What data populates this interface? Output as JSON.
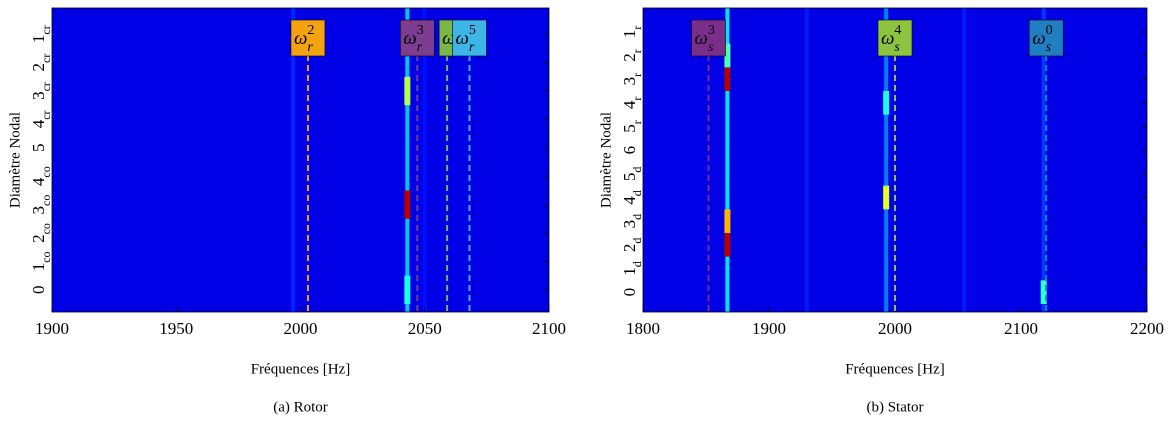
{
  "chart_data": [
    {
      "type": "heatmap",
      "colormap": "jet",
      "caption": "(a) Rotor",
      "xlabel": "Fréquences [Hz]",
      "ylabel": "Diamètre Nodal",
      "xlim": [
        1900,
        2100
      ],
      "xticks": [
        1900,
        1950,
        2000,
        2050,
        2100
      ],
      "categories": [
        [
          "0"
        ],
        [
          "1",
          "co"
        ],
        [
          "2",
          "co"
        ],
        [
          "3",
          "co"
        ],
        [
          "4",
          "co"
        ],
        [
          "5"
        ],
        [
          "4",
          "cr"
        ],
        [
          "3",
          "cr"
        ],
        [
          "2",
          "cr"
        ],
        [
          "1",
          "cr"
        ]
      ],
      "background": 0.1,
      "columns": [
        {
          "x": 2043,
          "intensity": 0.32
        },
        {
          "x": 1997,
          "intensity": 0.16
        },
        {
          "x": 2050,
          "intensity": 0.14
        }
      ],
      "peaks": [
        {
          "x": 2043,
          "y": 3,
          "intensity": 0.95
        },
        {
          "x": 2043,
          "y": 7,
          "intensity": 0.55
        },
        {
          "x": 2043,
          "y": 0,
          "intensity": 0.4
        }
      ],
      "markers": [
        {
          "x": 2003,
          "color": "#f2a30f",
          "symbol": "ω",
          "sub": "r",
          "sup": "2"
        },
        {
          "x": 2047,
          "color": "#7d3c8f",
          "symbol": "ω",
          "sub": "r",
          "sup": "3"
        },
        {
          "x": 2059,
          "color": "#7ab648",
          "symbol": "ω"
        },
        {
          "x": 2068,
          "color": "#3db5e6",
          "symbol": "ω",
          "sub": "r",
          "sup": "5"
        }
      ]
    },
    {
      "type": "heatmap",
      "colormap": "jet",
      "caption": "(b) Stator",
      "xlabel": "Fréquences [Hz]",
      "ylabel": "Diamètre Nodal",
      "xlim": [
        1800,
        2200
      ],
      "xticks": [
        1800,
        1900,
        2000,
        2100,
        2200
      ],
      "categories": [
        [
          "0"
        ],
        [
          "1",
          "d"
        ],
        [
          "2",
          "d"
        ],
        [
          "3",
          "d"
        ],
        [
          "4",
          "d"
        ],
        [
          "5",
          "d"
        ],
        [
          "6"
        ],
        [
          "5",
          "r"
        ],
        [
          "4",
          "r"
        ],
        [
          "3",
          "r"
        ],
        [
          "2",
          "r"
        ],
        [
          "1",
          "r"
        ]
      ],
      "background": 0.1,
      "columns": [
        {
          "x": 1867,
          "intensity": 0.35
        },
        {
          "x": 1993,
          "intensity": 0.25
        },
        {
          "x": 2118,
          "intensity": 0.18
        },
        {
          "x": 1930,
          "intensity": 0.15
        },
        {
          "x": 2055,
          "intensity": 0.15
        }
      ],
      "peaks": [
        {
          "x": 1867,
          "y": 2,
          "intensity": 0.95
        },
        {
          "x": 1867,
          "y": 3,
          "intensity": 0.7
        },
        {
          "x": 1867,
          "y": 9,
          "intensity": 0.95
        },
        {
          "x": 1867,
          "y": 10,
          "intensity": 0.45
        },
        {
          "x": 1993,
          "y": 4,
          "intensity": 0.6
        },
        {
          "x": 1993,
          "y": 8,
          "intensity": 0.4
        },
        {
          "x": 2118,
          "y": 0,
          "intensity": 0.42
        }
      ],
      "markers": [
        {
          "x": 1852,
          "color": "#7a2e8c",
          "symbol": "ω",
          "sub": "s",
          "sup": "3"
        },
        {
          "x": 2000,
          "color": "#8cc43f",
          "symbol": "ω",
          "sub": "s",
          "sup": "4"
        },
        {
          "x": 2120,
          "color": "#1f7fc1",
          "symbol": "ω",
          "sub": "s",
          "sup": "0"
        }
      ]
    }
  ]
}
